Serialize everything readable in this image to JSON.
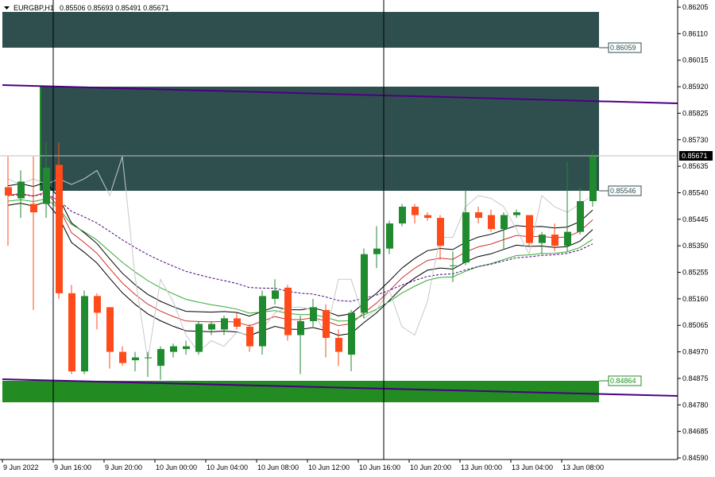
{
  "header": {
    "symbol": "EURGBP,H1",
    "ohlc": "0.85506 0.85693 0.85491 0.85671"
  },
  "colors": {
    "bull": "#1f8a2e",
    "bear": "#ff4a1a",
    "zone_dark": "#2f4f4f",
    "zone_green": "#228b22",
    "trendline": "#4b0082",
    "price_tag": "#000000"
  },
  "price_axis": {
    "ticks": [
      "0.86205",
      "0.86110",
      "0.86015",
      "0.85920",
      "0.85825",
      "0.85730",
      "0.85635",
      "0.85540",
      "0.85445",
      "0.85350",
      "0.85255",
      "0.85160",
      "0.85065",
      "0.84970",
      "0.84875",
      "0.84780",
      "0.84685",
      "0.84590"
    ]
  },
  "time_axis": {
    "ticks": [
      "9 Jun 2022",
      "9 Jun 16:00",
      "9 Jun 20:00",
      "10 Jun 00:00",
      "10 Jun 04:00",
      "10 Jun 08:00",
      "10 Jun 12:00",
      "10 Jun 16:00",
      "10 Jun 20:00",
      "13 Jun 00:00",
      "13 Jun 04:00",
      "13 Jun 08:00"
    ]
  },
  "levels": {
    "upper_zone": "0.86059",
    "mid_zone": "0.85546",
    "lower_zone": "0.84864",
    "current_price": "0.85671"
  },
  "chart_data": {
    "type": "candlestick",
    "ylim": [
      0.8459,
      0.86205
    ],
    "candles": [
      {
        "o": 0.8556,
        "h": 0.8567,
        "l": 0.8535,
        "c": 0.8553
      },
      {
        "o": 0.8552,
        "h": 0.8562,
        "l": 0.8545,
        "c": 0.8558
      },
      {
        "o": 0.855,
        "h": 0.8567,
        "l": 0.8512,
        "c": 0.8547
      },
      {
        "o": 0.855,
        "h": 0.8572,
        "l": 0.8545,
        "c": 0.8563
      },
      {
        "o": 0.8564,
        "h": 0.8572,
        "l": 0.8516,
        "c": 0.8518
      },
      {
        "o": 0.8518,
        "h": 0.8521,
        "l": 0.8489,
        "c": 0.849
      },
      {
        "o": 0.849,
        "h": 0.8519,
        "l": 0.8489,
        "c": 0.8517
      },
      {
        "o": 0.8517,
        "h": 0.8518,
        "l": 0.8505,
        "c": 0.8511
      },
      {
        "o": 0.8513,
        "h": 0.8513,
        "l": 0.8491,
        "c": 0.8497
      },
      {
        "o": 0.8497,
        "h": 0.8499,
        "l": 0.8492,
        "c": 0.8493
      },
      {
        "o": 0.8494,
        "h": 0.8497,
        "l": 0.849,
        "c": 0.8495
      },
      {
        "o": 0.8495,
        "h": 0.8497,
        "l": 0.8488,
        "c": 0.8495
      },
      {
        "o": 0.8492,
        "h": 0.8499,
        "l": 0.8487,
        "c": 0.8498
      },
      {
        "o": 0.8497,
        "h": 0.85,
        "l": 0.8495,
        "c": 0.8499
      },
      {
        "o": 0.8498,
        "h": 0.8501,
        "l": 0.8496,
        "c": 0.8499
      },
      {
        "o": 0.8497,
        "h": 0.8508,
        "l": 0.8496,
        "c": 0.8507
      },
      {
        "o": 0.8505,
        "h": 0.8508,
        "l": 0.8503,
        "c": 0.8507
      },
      {
        "o": 0.8505,
        "h": 0.851,
        "l": 0.8503,
        "c": 0.8509
      },
      {
        "o": 0.8509,
        "h": 0.8511,
        "l": 0.8505,
        "c": 0.8506
      },
      {
        "o": 0.8506,
        "h": 0.8507,
        "l": 0.8497,
        "c": 0.8499
      },
      {
        "o": 0.8499,
        "h": 0.8519,
        "l": 0.8496,
        "c": 0.8517
      },
      {
        "o": 0.8516,
        "h": 0.8523,
        "l": 0.8514,
        "c": 0.8519
      },
      {
        "o": 0.852,
        "h": 0.8521,
        "l": 0.8501,
        "c": 0.8503
      },
      {
        "o": 0.8503,
        "h": 0.851,
        "l": 0.8489,
        "c": 0.8508
      },
      {
        "o": 0.8508,
        "h": 0.8516,
        "l": 0.8506,
        "c": 0.8513
      },
      {
        "o": 0.8512,
        "h": 0.8514,
        "l": 0.8495,
        "c": 0.8502
      },
      {
        "o": 0.8502,
        "h": 0.8505,
        "l": 0.8492,
        "c": 0.8497
      },
      {
        "o": 0.8496,
        "h": 0.8512,
        "l": 0.849,
        "c": 0.8511
      },
      {
        "o": 0.8511,
        "h": 0.8534,
        "l": 0.8509,
        "c": 0.8532
      },
      {
        "o": 0.8532,
        "h": 0.8542,
        "l": 0.8527,
        "c": 0.8534
      },
      {
        "o": 0.8534,
        "h": 0.8544,
        "l": 0.8532,
        "c": 0.8543
      },
      {
        "o": 0.8543,
        "h": 0.855,
        "l": 0.8542,
        "c": 0.8549
      },
      {
        "o": 0.8549,
        "h": 0.855,
        "l": 0.8543,
        "c": 0.8546
      },
      {
        "o": 0.8546,
        "h": 0.8547,
        "l": 0.8544,
        "c": 0.8545
      },
      {
        "o": 0.8545,
        "h": 0.8546,
        "l": 0.853,
        "c": 0.8535
      },
      {
        "o": 0.8528,
        "h": 0.8533,
        "l": 0.8522,
        "c": 0.8528
      },
      {
        "o": 0.8529,
        "h": 0.8555,
        "l": 0.8528,
        "c": 0.8547
      },
      {
        "o": 0.8547,
        "h": 0.8549,
        "l": 0.8543,
        "c": 0.8545
      },
      {
        "o": 0.8546,
        "h": 0.8548,
        "l": 0.854,
        "c": 0.8541
      },
      {
        "o": 0.8541,
        "h": 0.8547,
        "l": 0.8534,
        "c": 0.8546
      },
      {
        "o": 0.8546,
        "h": 0.8548,
        "l": 0.8545,
        "c": 0.8547
      },
      {
        "o": 0.8546,
        "h": 0.8546,
        "l": 0.8535,
        "c": 0.8536
      },
      {
        "o": 0.8536,
        "h": 0.854,
        "l": 0.8532,
        "c": 0.8539
      },
      {
        "o": 0.8539,
        "h": 0.8543,
        "l": 0.8533,
        "c": 0.8535
      },
      {
        "o": 0.8535,
        "h": 0.8565,
        "l": 0.8533,
        "c": 0.854
      },
      {
        "o": 0.854,
        "h": 0.8556,
        "l": 0.8539,
        "c": 0.8551
      },
      {
        "o": 0.8551,
        "h": 0.8569,
        "l": 0.8549,
        "c": 0.8567
      }
    ]
  }
}
